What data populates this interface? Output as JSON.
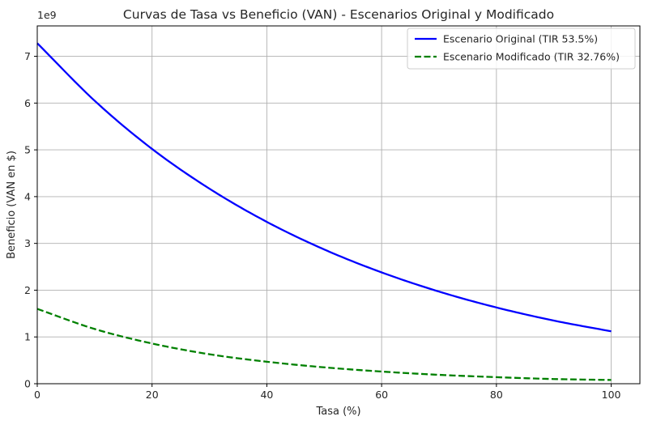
{
  "chart_data": {
    "type": "line",
    "title": "Curvas de Tasa vs Beneficio (VAN) - Escenarios Original y Modificado",
    "xlabel": "Tasa (%)",
    "ylabel": "Beneficio (VAN en $)",
    "y_offset_label": "1e9",
    "xlim": [
      0,
      105
    ],
    "ylim": [
      0,
      7.65
    ],
    "x_ticks": [
      0,
      20,
      40,
      60,
      80,
      100
    ],
    "y_ticks": [
      0,
      1,
      2,
      3,
      4,
      5,
      6,
      7
    ],
    "grid": true,
    "legend_position": "top-right",
    "x": [
      0,
      10,
      20,
      30,
      40,
      50,
      60,
      70,
      80,
      90,
      100
    ],
    "series": [
      {
        "name": "Escenario Original (TIR 53.5%)",
        "color": "#0000ff",
        "style": "solid",
        "values": [
          7.28,
          6.05,
          5.02,
          4.17,
          3.46,
          2.87,
          2.38,
          1.97,
          1.63,
          1.35,
          1.12
        ]
      },
      {
        "name": "Escenario Modificado (TIR 32.76%)",
        "color": "#008000",
        "style": "dashed",
        "values": [
          1.6,
          1.17,
          0.86,
          0.63,
          0.47,
          0.35,
          0.26,
          0.19,
          0.14,
          0.1,
          0.08
        ]
      }
    ]
  }
}
